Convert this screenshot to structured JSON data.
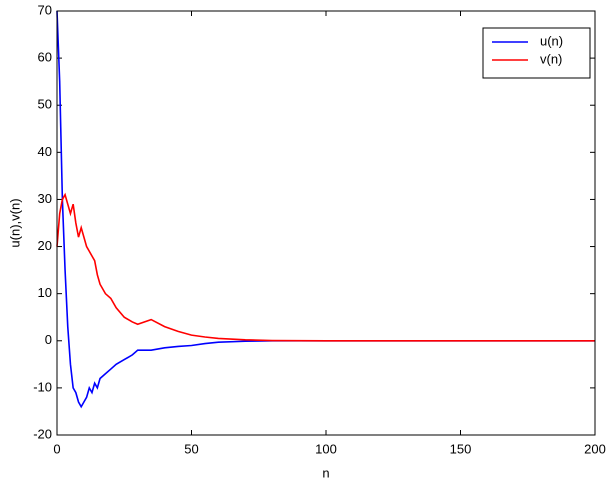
{
  "chart_data": {
    "type": "line",
    "x_label": "n",
    "y_label": "u(n),v(n)",
    "x": [
      0,
      1,
      2,
      3,
      4,
      5,
      6,
      7,
      8,
      9,
      10,
      11,
      12,
      13,
      14,
      15,
      16,
      18,
      20,
      22,
      25,
      28,
      30,
      35,
      40,
      45,
      50,
      55,
      60,
      70,
      80,
      100,
      150,
      200
    ],
    "series": [
      {
        "name": "u(n)",
        "color": "#0000ff",
        "values": [
          70,
          55,
          30,
          15,
          3,
          -5,
          -10,
          -11,
          -13,
          -14,
          -13,
          -12,
          -10,
          -11,
          -9,
          -10,
          -8,
          -7,
          -6,
          -5,
          -4,
          -3,
          -2,
          -2,
          -1.5,
          -1.2,
          -1,
          -0.6,
          -0.3,
          -0.1,
          0,
          0,
          0,
          0
        ]
      },
      {
        "name": "v(n)",
        "color": "#ff0000",
        "values": [
          20,
          27,
          30,
          31,
          29,
          27,
          29,
          25,
          22,
          24,
          22,
          20,
          19,
          18,
          17,
          14,
          12,
          10,
          9,
          7,
          5,
          4,
          3.5,
          4.5,
          3,
          2,
          1.2,
          0.8,
          0.5,
          0.2,
          0.05,
          0,
          0,
          0
        ]
      }
    ],
    "xlim": [
      0,
      200
    ],
    "xticks": [
      0,
      50,
      100,
      150,
      200
    ],
    "ylim": [
      -20,
      70
    ],
    "yticks": [
      -20,
      -10,
      0,
      10,
      20,
      30,
      40,
      50,
      60,
      70
    ],
    "legend": "upper right"
  }
}
